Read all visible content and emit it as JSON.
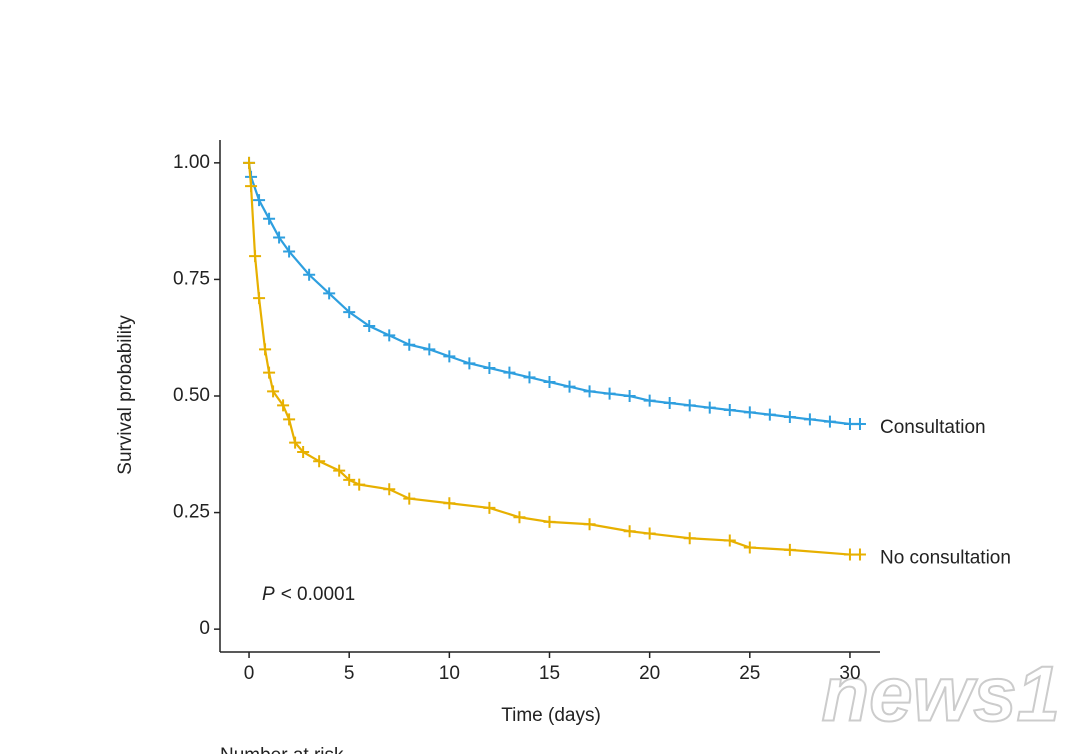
{
  "chart_data": {
    "type": "survival",
    "y_label": "Survival probability",
    "x_label": "Time (days)",
    "annotation": {
      "symbol": "P",
      "text": "< 0.0001"
    },
    "footer": "Number at risk",
    "watermark": "news1",
    "xlim": [
      -1.45,
      31.5
    ],
    "ylim": [
      -0.049,
      1.049
    ],
    "xticks": [
      0,
      5,
      10,
      15,
      20,
      25,
      30
    ],
    "yticks": [
      0,
      0.25,
      {
        "value": 0.5,
        "label": "0.50"
      },
      0.75,
      {
        "value": 1,
        "label": "1.00"
      }
    ],
    "series": [
      {
        "name": "Consultation",
        "color": "#2e9fdf",
        "x": [
          0,
          0.1,
          0.5,
          1,
          1.5,
          2,
          3,
          4,
          5,
          6,
          7,
          8,
          9,
          10,
          11,
          12,
          13,
          14,
          15,
          16,
          17,
          18,
          19,
          20,
          21,
          22,
          23,
          24,
          25,
          26,
          27,
          28,
          29,
          30,
          30.5
        ],
        "values": [
          1.0,
          0.97,
          0.92,
          0.88,
          0.84,
          0.81,
          0.76,
          0.72,
          0.68,
          0.65,
          0.63,
          0.61,
          0.6,
          0.585,
          0.57,
          0.56,
          0.55,
          0.54,
          0.53,
          0.52,
          0.51,
          0.505,
          0.5,
          0.49,
          0.485,
          0.48,
          0.475,
          0.47,
          0.465,
          0.46,
          0.455,
          0.45,
          0.445,
          0.44,
          0.44
        ]
      },
      {
        "name": "No consultation",
        "color": "#e7b000",
        "x": [
          0,
          0.1,
          0.3,
          0.5,
          0.8,
          1,
          1.2,
          1.7,
          2,
          2.3,
          2.7,
          3.5,
          4.5,
          5,
          5.5,
          7,
          8,
          10,
          12,
          13.5,
          15,
          17,
          19,
          20,
          22,
          24,
          25,
          27,
          30,
          30.5
        ],
        "values": [
          1.0,
          0.95,
          0.8,
          0.71,
          0.6,
          0.55,
          0.51,
          0.48,
          0.45,
          0.4,
          0.38,
          0.36,
          0.34,
          0.32,
          0.31,
          0.3,
          0.28,
          0.27,
          0.26,
          0.24,
          0.23,
          0.225,
          0.21,
          0.205,
          0.195,
          0.19,
          0.175,
          0.17,
          0.16,
          0.16
        ]
      }
    ]
  }
}
